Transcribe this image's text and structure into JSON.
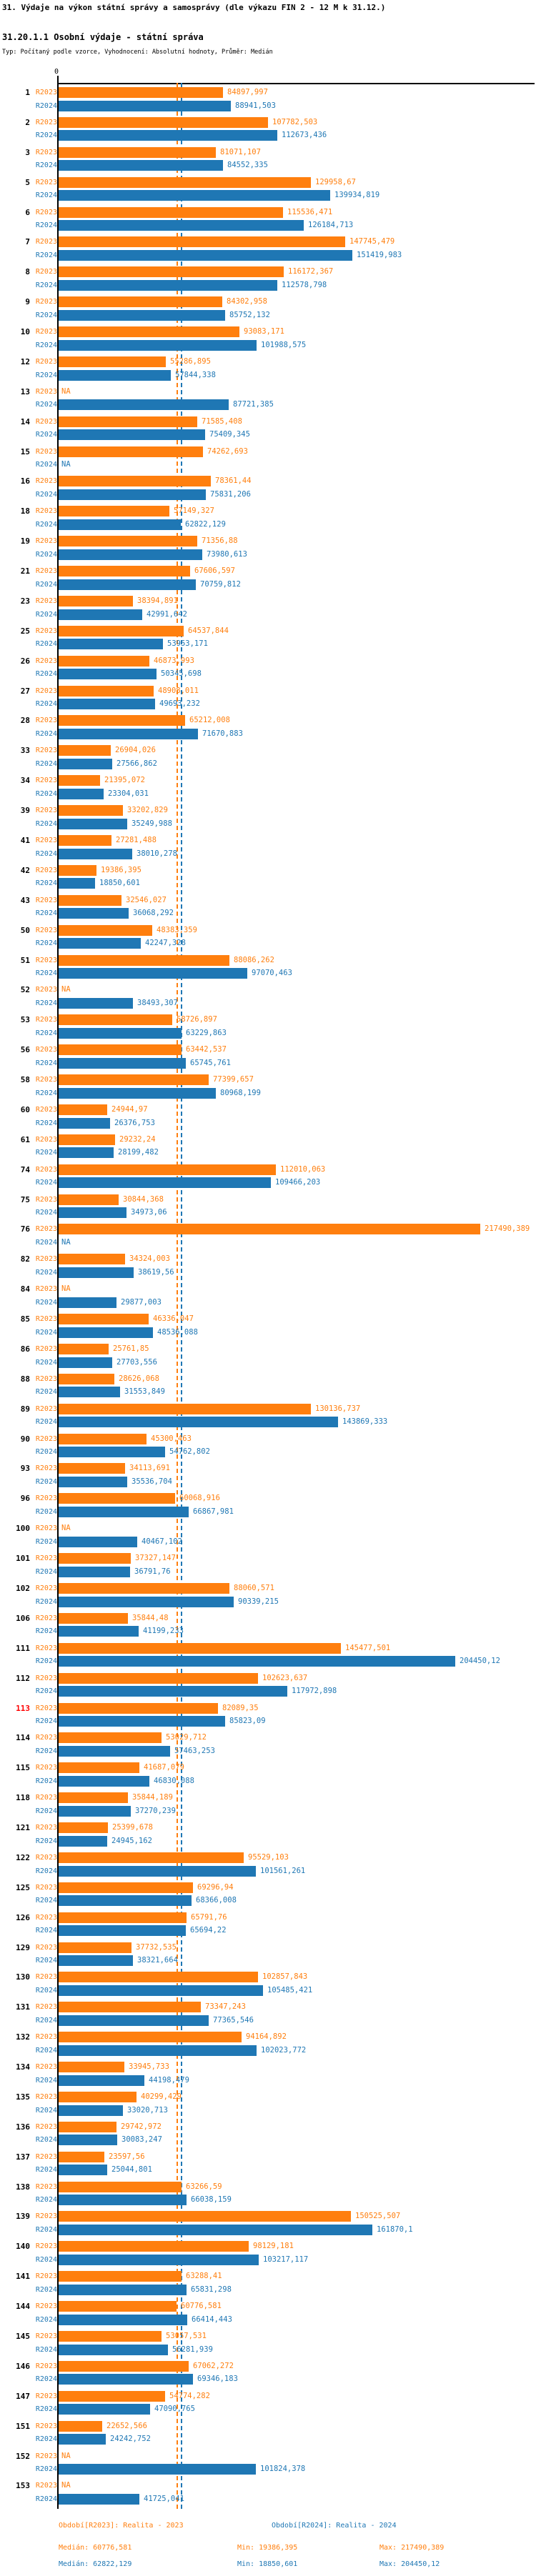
{
  "title": "31. Výdaje na výkon státní správy a samosprávy (dle výkazu FIN 2 - 12 M k 31.12.)",
  "subtitle": "31.20.1.1 Osobní výdaje - státní správa",
  "meta": "Typ: Počítaný podle vzorce, Vyhodnocení: Absolutní hodnoty, Průměr: Medián",
  "axis": {
    "zero_label": "0"
  },
  "legend": {
    "r2023": "Období[R2023]: Realita - 2023",
    "r2024": "Období[R2024]: Realita - 2024"
  },
  "stats": {
    "r2023": {
      "median": "Medián: 60776,581",
      "min": "Min: 19386,395",
      "max": "Max: 217490,389"
    },
    "r2024": {
      "median": "Medián: 62822,129",
      "min": "Min: 18850,601",
      "max": "Max: 204450,12"
    }
  },
  "colors": {
    "r2023": "#ff7f0e",
    "r2024": "#1f77b4",
    "highlight_row": "#ff0000",
    "text": "#000000"
  },
  "chart_data": {
    "type": "bar",
    "orientation": "horizontal",
    "na_label": "NA",
    "highlighted_category": "113",
    "xlim": [
      0,
      230000
    ],
    "medians": {
      "R2023": 60776.581,
      "R2024": 62822.129
    },
    "mins": {
      "R2023": 19386.395,
      "R2024": 18850.601
    },
    "maxs": {
      "R2023": 217490.389,
      "R2024": 204450.12
    },
    "categories": [
      "1",
      "2",
      "3",
      "5",
      "6",
      "7",
      "8",
      "9",
      "10",
      "12",
      "13",
      "14",
      "15",
      "16",
      "18",
      "19",
      "21",
      "23",
      "25",
      "26",
      "27",
      "28",
      "33",
      "34",
      "39",
      "41",
      "42",
      "43",
      "50",
      "51",
      "52",
      "53",
      "56",
      "58",
      "60",
      "61",
      "74",
      "75",
      "76",
      "82",
      "84",
      "85",
      "86",
      "88",
      "89",
      "90",
      "93",
      "96",
      "100",
      "101",
      "102",
      "106",
      "111",
      "112",
      "113",
      "114",
      "115",
      "118",
      "121",
      "122",
      "125",
      "126",
      "129",
      "130",
      "131",
      "132",
      "134",
      "135",
      "136",
      "137",
      "138",
      "139",
      "140",
      "141",
      "144",
      "145",
      "146",
      "147",
      "151",
      "152",
      "153"
    ],
    "series": [
      {
        "name": "R2023",
        "color": "#ff7f0e",
        "values": [
          84897.997,
          107782.503,
          81071.107,
          129958.67,
          115536.471,
          147745.479,
          116172.367,
          84302.958,
          93083.171,
          55286.895,
          null,
          71585.408,
          74262.693,
          78361.44,
          57149.327,
          71356.88,
          67606.597,
          38394.891,
          64537.844,
          46873.993,
          48908.011,
          65212.008,
          26904.026,
          21395.072,
          33202.829,
          27281.488,
          19386.395,
          32546.027,
          48383.359,
          88086.262,
          null,
          58726.897,
          63442.537,
          77399.657,
          24944.97,
          29232.24,
          112010.063,
          30844.368,
          217490.389,
          34324.003,
          null,
          46336.047,
          25761.85,
          28626.068,
          130136.737,
          45300.463,
          34113.691,
          60068.916,
          null,
          37327.147,
          88060.571,
          35844.48,
          145477.501,
          102623.637,
          82089.35,
          53029.712,
          41687.079,
          35844.189,
          25399.678,
          95529.103,
          69296.94,
          65791.76,
          37732.535,
          102857.843,
          73347.243,
          94164.892,
          33945.733,
          40299.429,
          29742.972,
          23597.56,
          63266.59,
          150525.507,
          98129.181,
          63288.41,
          60776.581,
          53057.531,
          67062.272,
          54774.282,
          22652.566,
          null,
          null
        ],
        "labels": [
          "84897,997",
          "107782,503",
          "81071,107",
          "129958,67",
          "115536,471",
          "147745,479",
          "116172,367",
          "84302,958",
          "93083,171",
          "55286,895",
          "NA",
          "71585,408",
          "74262,693",
          "78361,44",
          "57149,327",
          "71356,88",
          "67606,597",
          "38394,891",
          "64537,844",
          "46873,993",
          "48908,011",
          "65212,008",
          "26904,026",
          "21395,072",
          "33202,829",
          "27281,488",
          "19386,395",
          "32546,027",
          "48383,359",
          "88086,262",
          "NA",
          "58726,897",
          "63442,537",
          "77399,657",
          "24944,97",
          "29232,24",
          "112010,063",
          "30844,368",
          "217490,389",
          "34324,003",
          "NA",
          "46336,047",
          "25761,85",
          "28626,068",
          "130136,737",
          "45300,463",
          "34113,691",
          "60068,916",
          "NA",
          "37327,147",
          "88060,571",
          "35844,48",
          "145477,501",
          "102623,637",
          "82089,35",
          "53029,712",
          "41687,079",
          "35844,189",
          "25399,678",
          "95529,103",
          "69296,94",
          "65791,76",
          "37732,535",
          "102857,843",
          "73347,243",
          "94164,892",
          "33945,733",
          "40299,429",
          "29742,972",
          "23597,56",
          "63266,59",
          "150525,507",
          "98129,181",
          "63288,41",
          "60776,581",
          "53057,531",
          "67062,272",
          "54774,282",
          "22652,566",
          "NA",
          "NA"
        ]
      },
      {
        "name": "R2024",
        "color": "#1f77b4",
        "values": [
          88941.503,
          112673.436,
          84552.335,
          139934.819,
          126184.713,
          151419.983,
          112578.798,
          85752.132,
          101988.575,
          57844.338,
          87721.385,
          75409.345,
          null,
          75831.206,
          62822.129,
          73980.613,
          70759.812,
          42991.642,
          53953.171,
          50345.698,
          49693.232,
          71670.883,
          27566.862,
          23304.031,
          35249.988,
          38010.278,
          18850.601,
          36068.292,
          42247.328,
          97070.463,
          38493.307,
          63229.863,
          65745.761,
          80968.199,
          26376.753,
          28199.482,
          109466.203,
          34973.06,
          null,
          38619.56,
          29877.003,
          48536.088,
          27703.556,
          31553.849,
          143869.333,
          54762.802,
          35536.704,
          66867.981,
          40467.102,
          36791.76,
          90339.215,
          41199.233,
          204450.12,
          117972.898,
          85823.09,
          57463.253,
          46830.088,
          37270.239,
          24945.162,
          101561.261,
          68366.008,
          65694.22,
          38321.664,
          105485.421,
          77365.546,
          102023.772,
          44198.479,
          33020.713,
          30083.247,
          25044.801,
          66038.159,
          161870.1,
          103217.117,
          65831.298,
          66414.443,
          56281.939,
          69346.183,
          47090.765,
          24242.752,
          101824.378,
          41725.041
        ],
        "labels": [
          "88941,503",
          "112673,436",
          "84552,335",
          "139934,819",
          "126184,713",
          "151419,983",
          "112578,798",
          "85752,132",
          "101988,575",
          "57844,338",
          "87721,385",
          "75409,345",
          "NA",
          "75831,206",
          "62822,129",
          "73980,613",
          "70759,812",
          "42991,642",
          "53953,171",
          "50345,698",
          "49693,232",
          "71670,883",
          "27566,862",
          "23304,031",
          "35249,988",
          "38010,278",
          "18850,601",
          "36068,292",
          "42247,328",
          "97070,463",
          "38493,307",
          "63229,863",
          "65745,761",
          "80968,199",
          "26376,753",
          "28199,482",
          "109466,203",
          "34973,06",
          "NA",
          "38619,56",
          "29877,003",
          "48536,088",
          "27703,556",
          "31553,849",
          "143869,333",
          "54762,802",
          "35536,704",
          "66867,981",
          "40467,102",
          "36791,76",
          "90339,215",
          "41199,233",
          "204450,12",
          "117972,898",
          "85823,09",
          "57463,253",
          "46830,088",
          "37270,239",
          "24945,162",
          "101561,261",
          "68366,008",
          "65694,22",
          "38321,664",
          "105485,421",
          "77365,546",
          "102023,772",
          "44198,479",
          "33020,713",
          "30083,247",
          "25044,801",
          "66038,159",
          "161870,1",
          "103217,117",
          "65831,298",
          "66414,443",
          "56281,939",
          "69346,183",
          "47090,765",
          "24242,752",
          "101824,378",
          "41725,041"
        ]
      }
    ]
  }
}
